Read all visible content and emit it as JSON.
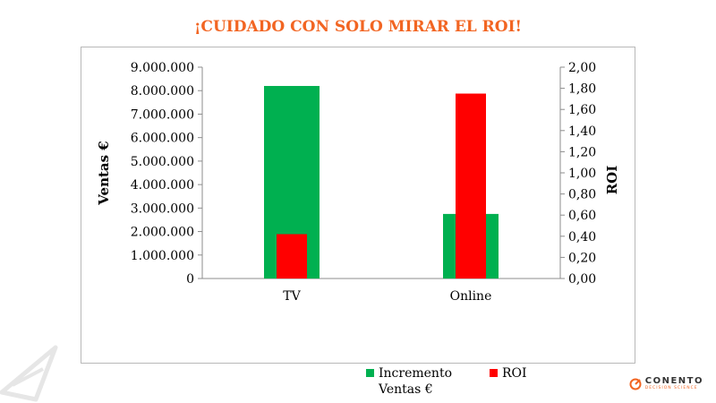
{
  "slide": {
    "title": "¡CUIDADO CON SOLO MIRAR EL ROI!"
  },
  "brand": {
    "name": "CONENTO",
    "tagline": "DECISION SCIENCE",
    "accent_color": "#f26522",
    "mark_icon": "conento-circle-arrow-icon"
  },
  "decoration": {
    "icon": "paper-plane-outline-icon"
  },
  "chart_data": {
    "type": "bar",
    "categories": [
      "TV",
      "Online"
    ],
    "ylabel": "Ventas €",
    "y2label": "ROI",
    "ylim": [
      0,
      9000000
    ],
    "y2lim": [
      0,
      2.0
    ],
    "y_ticks": [
      "0",
      "1.000.000",
      "2.000.000",
      "3.000.000",
      "4.000.000",
      "5.000.000",
      "6.000.000",
      "7.000.000",
      "8.000.000",
      "9.000.000"
    ],
    "y2_ticks": [
      "0,00",
      "0,20",
      "0,40",
      "0,60",
      "0,80",
      "1,00",
      "1,20",
      "1,40",
      "1,60",
      "1,80",
      "2,00"
    ],
    "grid": false,
    "legend_position": "bottom",
    "series": [
      {
        "name": "Incremento Ventas €",
        "axis": "left",
        "color": "#00b050",
        "values": [
          8200000,
          2750000
        ]
      },
      {
        "name": "ROI",
        "axis": "right",
        "color": "#ff0000",
        "values": [
          0.42,
          1.75
        ]
      }
    ]
  }
}
